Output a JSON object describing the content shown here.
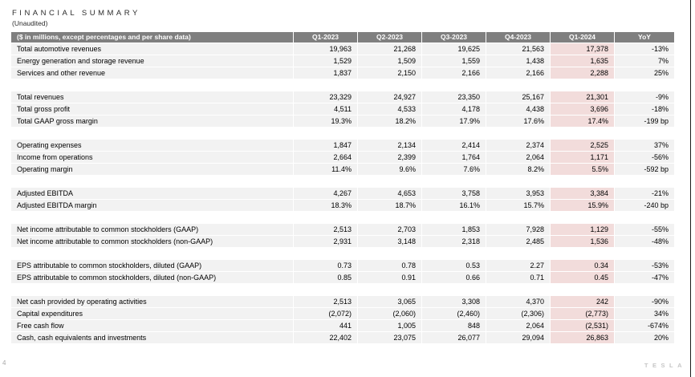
{
  "header": {
    "title": "FINANCIAL SUMMARY",
    "subtitle": "(Unaudited)"
  },
  "colors": {
    "header_bg": "#7f7f7f",
    "header_text": "#ffffff",
    "row_bg": "#f2f2f2",
    "highlight_bg": "#f2dcdb"
  },
  "table": {
    "header": [
      "($ in millions, except percentages and per share data)",
      "Q1-2023",
      "Q2-2023",
      "Q3-2023",
      "Q4-2023",
      "Q1-2024",
      "YoY"
    ],
    "highlighted_column": "Q1-2024",
    "rows": [
      {
        "type": "data",
        "label": "Total automotive revenues",
        "values": [
          "19,963",
          "21,268",
          "19,625",
          "21,563",
          "17,378"
        ],
        "yoy": "-13%"
      },
      {
        "type": "data",
        "label": "Energy generation and storage revenue",
        "values": [
          "1,529",
          "1,509",
          "1,559",
          "1,438",
          "1,635"
        ],
        "yoy": "7%"
      },
      {
        "type": "data",
        "label": "Services and other revenue",
        "values": [
          "1,837",
          "2,150",
          "2,166",
          "2,166",
          "2,288"
        ],
        "yoy": "25%"
      },
      {
        "type": "spacer"
      },
      {
        "type": "data",
        "label": "Total revenues",
        "values": [
          "23,329",
          "24,927",
          "23,350",
          "25,167",
          "21,301"
        ],
        "yoy": "-9%"
      },
      {
        "type": "data",
        "label": "Total gross profit",
        "values": [
          "4,511",
          "4,533",
          "4,178",
          "4,438",
          "3,696"
        ],
        "yoy": "-18%"
      },
      {
        "type": "data",
        "label": "Total GAAP gross margin",
        "values": [
          "19.3%",
          "18.2%",
          "17.9%",
          "17.6%",
          "17.4%"
        ],
        "yoy": "-199 bp"
      },
      {
        "type": "spacer"
      },
      {
        "type": "data",
        "label": "Operating expenses",
        "values": [
          "1,847",
          "2,134",
          "2,414",
          "2,374",
          "2,525"
        ],
        "yoy": "37%"
      },
      {
        "type": "data",
        "label": "Income from operations",
        "values": [
          "2,664",
          "2,399",
          "1,764",
          "2,064",
          "1,171"
        ],
        "yoy": "-56%"
      },
      {
        "type": "data",
        "label": "Operating margin",
        "values": [
          "11.4%",
          "9.6%",
          "7.6%",
          "8.2%",
          "5.5%"
        ],
        "yoy": "-592 bp"
      },
      {
        "type": "spacer"
      },
      {
        "type": "data",
        "label": "Adjusted EBITDA",
        "values": [
          "4,267",
          "4,653",
          "3,758",
          "3,953",
          "3,384"
        ],
        "yoy": "-21%"
      },
      {
        "type": "data",
        "label": "Adjusted EBITDA margin",
        "values": [
          "18.3%",
          "18.7%",
          "16.1%",
          "15.7%",
          "15.9%"
        ],
        "yoy": "-240 bp"
      },
      {
        "type": "spacer"
      },
      {
        "type": "data",
        "label": "Net income attributable to common stockholders (GAAP)",
        "values": [
          "2,513",
          "2,703",
          "1,853",
          "7,928",
          "1,129"
        ],
        "yoy": "-55%"
      },
      {
        "type": "data",
        "label": "Net income attributable to common stockholders (non-GAAP)",
        "values": [
          "2,931",
          "3,148",
          "2,318",
          "2,485",
          "1,536"
        ],
        "yoy": "-48%"
      },
      {
        "type": "spacer"
      },
      {
        "type": "data",
        "label": "EPS attributable to common stockholders, diluted (GAAP)",
        "values": [
          "0.73",
          "0.78",
          "0.53",
          "2.27",
          "0.34"
        ],
        "yoy": "-53%"
      },
      {
        "type": "data",
        "label": "EPS attributable to common stockholders, diluted (non-GAAP)",
        "values": [
          "0.85",
          "0.91",
          "0.66",
          "0.71",
          "0.45"
        ],
        "yoy": "-47%"
      },
      {
        "type": "spacer"
      },
      {
        "type": "data",
        "label": "Net cash provided by operating activities",
        "values": [
          "2,513",
          "3,065",
          "3,308",
          "4,370",
          "242"
        ],
        "yoy": "-90%"
      },
      {
        "type": "data",
        "label": "Capital expenditures",
        "values": [
          "(2,072)",
          "(2,060)",
          "(2,460)",
          "(2,306)",
          "(2,773)"
        ],
        "yoy": "34%"
      },
      {
        "type": "data",
        "label": "Free cash flow",
        "values": [
          "441",
          "1,005",
          "848",
          "2,064",
          "(2,531)"
        ],
        "yoy": "-674%"
      },
      {
        "type": "data",
        "label": "Cash, cash equivalents and investments",
        "values": [
          "22,402",
          "23,075",
          "26,077",
          "29,094",
          "26,863"
        ],
        "yoy": "20%"
      }
    ]
  },
  "footer": {
    "page_number": "4",
    "brand": "TESLA"
  }
}
